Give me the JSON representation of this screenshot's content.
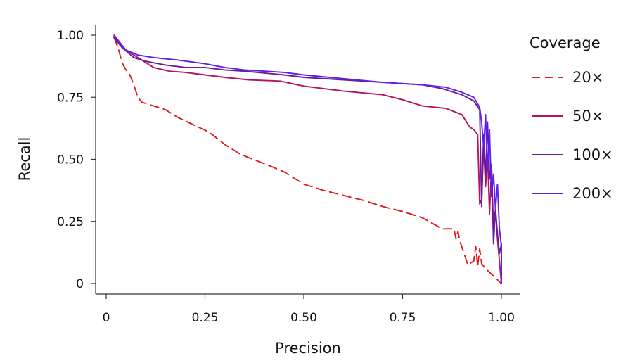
{
  "chart_data": {
    "type": "line",
    "xlabel": "Precision",
    "ylabel": "Recall",
    "xlim": [
      0,
      1.0
    ],
    "ylim": [
      0,
      1.0
    ],
    "xticks": [
      {
        "value": 0,
        "label": "0"
      },
      {
        "value": 0.25,
        "label": "0.25"
      },
      {
        "value": 0.5,
        "label": "0.50"
      },
      {
        "value": 0.75,
        "label": "0.75"
      },
      {
        "value": 1.0,
        "label": "1.00"
      }
    ],
    "yticks": [
      {
        "value": 0,
        "label": "0"
      },
      {
        "value": 0.25,
        "label": "0.25"
      },
      {
        "value": 0.5,
        "label": "0.50"
      },
      {
        "value": 0.75,
        "label": "0.75"
      },
      {
        "value": 1.0,
        "label": "1.00"
      }
    ],
    "grid": false,
    "legend": {
      "title": "Coverage",
      "position": "right"
    },
    "series": [
      {
        "name": "20×",
        "color": "#e01b1b",
        "dash": "dashed",
        "points": [
          [
            0.02,
            0.99
          ],
          [
            0.03,
            0.95
          ],
          [
            0.04,
            0.89
          ],
          [
            0.05,
            0.86
          ],
          [
            0.06,
            0.84
          ],
          [
            0.07,
            0.8
          ],
          [
            0.08,
            0.75
          ],
          [
            0.09,
            0.73
          ],
          [
            0.12,
            0.715
          ],
          [
            0.15,
            0.7
          ],
          [
            0.18,
            0.67
          ],
          [
            0.22,
            0.64
          ],
          [
            0.26,
            0.61
          ],
          [
            0.3,
            0.56
          ],
          [
            0.34,
            0.52
          ],
          [
            0.38,
            0.495
          ],
          [
            0.42,
            0.47
          ],
          [
            0.45,
            0.45
          ],
          [
            0.5,
            0.4
          ],
          [
            0.55,
            0.375
          ],
          [
            0.6,
            0.355
          ],
          [
            0.65,
            0.335
          ],
          [
            0.7,
            0.31
          ],
          [
            0.75,
            0.29
          ],
          [
            0.8,
            0.265
          ],
          [
            0.85,
            0.22
          ],
          [
            0.88,
            0.22
          ],
          [
            0.885,
            0.18
          ],
          [
            0.89,
            0.21
          ],
          [
            0.895,
            0.17
          ],
          [
            0.91,
            0.1
          ],
          [
            0.915,
            0.075
          ],
          [
            0.93,
            0.09
          ],
          [
            0.935,
            0.15
          ],
          [
            0.94,
            0.07
          ],
          [
            0.945,
            0.14
          ],
          [
            0.95,
            0.08
          ],
          [
            0.96,
            0.06
          ],
          [
            0.98,
            0.03
          ],
          [
            1.0,
            0.0
          ]
        ]
      },
      {
        "name": "50×",
        "color": "#b3135f",
        "dash": "solid",
        "points": [
          [
            0.02,
            1.0
          ],
          [
            0.03,
            0.98
          ],
          [
            0.05,
            0.94
          ],
          [
            0.08,
            0.91
          ],
          [
            0.12,
            0.87
          ],
          [
            0.16,
            0.855
          ],
          [
            0.2,
            0.85
          ],
          [
            0.25,
            0.84
          ],
          [
            0.3,
            0.83
          ],
          [
            0.36,
            0.82
          ],
          [
            0.44,
            0.815
          ],
          [
            0.5,
            0.795
          ],
          [
            0.6,
            0.775
          ],
          [
            0.7,
            0.76
          ],
          [
            0.75,
            0.74
          ],
          [
            0.8,
            0.715
          ],
          [
            0.86,
            0.705
          ],
          [
            0.9,
            0.68
          ],
          [
            0.92,
            0.63
          ],
          [
            0.93,
            0.62
          ],
          [
            0.94,
            0.6
          ],
          [
            0.945,
            0.32
          ],
          [
            0.95,
            0.34
          ],
          [
            0.955,
            0.55
          ],
          [
            0.96,
            0.39
          ],
          [
            0.965,
            0.52
          ],
          [
            0.97,
            0.28
          ],
          [
            0.975,
            0.47
          ],
          [
            0.98,
            0.22
          ],
          [
            0.985,
            0.3
          ],
          [
            0.99,
            0.18
          ],
          [
            1.0,
            0.0
          ]
        ]
      },
      {
        "name": "100×",
        "color": "#6a1b9a",
        "dash": "solid",
        "points": [
          [
            0.02,
            0.99
          ],
          [
            0.04,
            0.95
          ],
          [
            0.07,
            0.91
          ],
          [
            0.1,
            0.895
          ],
          [
            0.15,
            0.88
          ],
          [
            0.2,
            0.87
          ],
          [
            0.25,
            0.87
          ],
          [
            0.3,
            0.86
          ],
          [
            0.35,
            0.855
          ],
          [
            0.45,
            0.84
          ],
          [
            0.5,
            0.83
          ],
          [
            0.6,
            0.82
          ],
          [
            0.7,
            0.81
          ],
          [
            0.8,
            0.8
          ],
          [
            0.85,
            0.785
          ],
          [
            0.9,
            0.76
          ],
          [
            0.93,
            0.735
          ],
          [
            0.945,
            0.7
          ],
          [
            0.95,
            0.31
          ],
          [
            0.955,
            0.6
          ],
          [
            0.96,
            0.43
          ],
          [
            0.965,
            0.65
          ],
          [
            0.97,
            0.42
          ],
          [
            0.975,
            0.48
          ],
          [
            0.98,
            0.16
          ],
          [
            0.985,
            0.3
          ],
          [
            0.99,
            0.2
          ],
          [
            0.995,
            0.12
          ],
          [
            1.0,
            0.16
          ],
          [
            1.0,
            0.0
          ]
        ]
      },
      {
        "name": "200×",
        "color": "#5b21ea",
        "dash": "solid",
        "points": [
          [
            0.02,
            0.995
          ],
          [
            0.05,
            0.94
          ],
          [
            0.08,
            0.92
          ],
          [
            0.12,
            0.91
          ],
          [
            0.18,
            0.9
          ],
          [
            0.25,
            0.885
          ],
          [
            0.3,
            0.87
          ],
          [
            0.35,
            0.86
          ],
          [
            0.45,
            0.85
          ],
          [
            0.5,
            0.84
          ],
          [
            0.6,
            0.825
          ],
          [
            0.7,
            0.81
          ],
          [
            0.8,
            0.8
          ],
          [
            0.86,
            0.79
          ],
          [
            0.9,
            0.77
          ],
          [
            0.93,
            0.75
          ],
          [
            0.945,
            0.71
          ],
          [
            0.95,
            0.65
          ],
          [
            0.955,
            0.55
          ],
          [
            0.96,
            0.68
          ],
          [
            0.965,
            0.45
          ],
          [
            0.97,
            0.62
          ],
          [
            0.975,
            0.35
          ],
          [
            0.98,
            0.44
          ],
          [
            0.985,
            0.3
          ],
          [
            0.99,
            0.4
          ],
          [
            0.995,
            0.22
          ],
          [
            1.0,
            0.15
          ],
          [
            1.0,
            0.0
          ]
        ]
      }
    ]
  }
}
